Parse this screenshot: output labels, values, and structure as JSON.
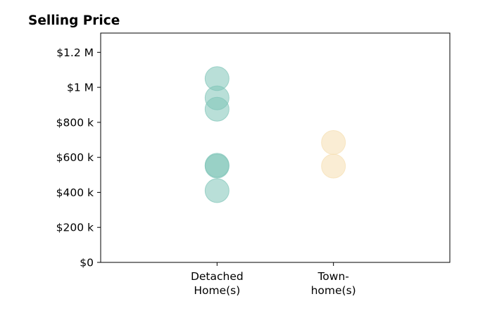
{
  "chart_data": {
    "type": "scatter",
    "title": "Selling Price",
    "xlabel": "",
    "ylabel": "",
    "categories": [
      {
        "label_lines": [
          "Detached",
          "Home(s)"
        ]
      },
      {
        "label_lines": [
          "Town-",
          "home(s)"
        ]
      }
    ],
    "y_ticks": [
      {
        "value": 0,
        "label": "$0"
      },
      {
        "value": 200000,
        "label": "$200 k"
      },
      {
        "value": 400000,
        "label": "$400 k"
      },
      {
        "value": 600000,
        "label": "$600 k"
      },
      {
        "value": 800000,
        "label": "$800 k"
      },
      {
        "value": 1000000,
        "label": "$1 M"
      },
      {
        "value": 1200000,
        "label": "$1.2 M"
      }
    ],
    "ylim": [
      0,
      1310000
    ],
    "xlim": [
      -1,
      2
    ],
    "grid": false,
    "series": [
      {
        "category": 0,
        "color": "#7fc4b8",
        "values": [
          1050000,
          940000,
          875000,
          555000,
          550000,
          410000
        ]
      },
      {
        "category": 1,
        "color": "#f5deb0",
        "values": [
          685000,
          550000
        ]
      }
    ]
  }
}
